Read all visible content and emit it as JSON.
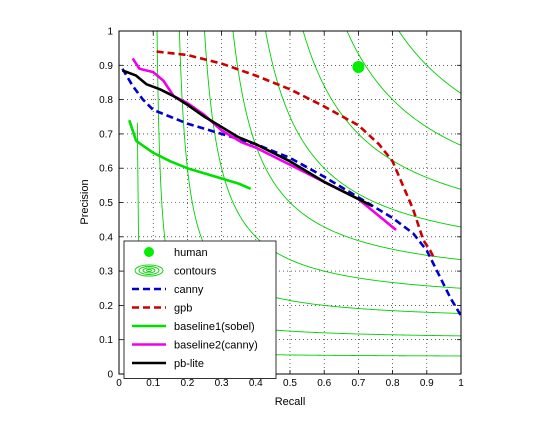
{
  "chart_data": {
    "type": "line",
    "xlabel": "Recall",
    "ylabel": "Precision",
    "xlim": [
      0,
      1
    ],
    "ylim": [
      0,
      1
    ],
    "grid": true,
    "legend_position": "bottom-left",
    "x_ticks": [
      "0",
      "0.1",
      "0.2",
      "0.3",
      "0.4",
      "0.5",
      "0.6",
      "0.7",
      "0.8",
      "0.9",
      "1"
    ],
    "y_ticks": [
      "0",
      "0.1",
      "0.2",
      "0.3",
      "0.4",
      "0.5",
      "0.6",
      "0.7",
      "0.8",
      "0.9",
      "1"
    ],
    "contours": {
      "color": "#00d000",
      "f_levels": [
        0.1,
        0.2,
        0.3,
        0.4,
        0.5,
        0.6,
        0.7,
        0.8,
        0.9
      ]
    },
    "series": [
      {
        "name": "human",
        "kind": "marker",
        "color": "#00ee00",
        "points": [
          [
            0.7,
            0.895
          ]
        ]
      },
      {
        "name": "contours",
        "kind": "contour-legend",
        "color": "#00d000",
        "points": []
      },
      {
        "name": "canny",
        "kind": "line",
        "style": "dashed",
        "color": "#0000cc",
        "points": [
          [
            0.01,
            0.89
          ],
          [
            0.04,
            0.84
          ],
          [
            0.07,
            0.8
          ],
          [
            0.1,
            0.77
          ],
          [
            0.15,
            0.75
          ],
          [
            0.2,
            0.73
          ],
          [
            0.3,
            0.7
          ],
          [
            0.4,
            0.67
          ],
          [
            0.5,
            0.63
          ],
          [
            0.6,
            0.575
          ],
          [
            0.7,
            0.515
          ],
          [
            0.8,
            0.455
          ],
          [
            0.86,
            0.41
          ],
          [
            0.9,
            0.36
          ],
          [
            0.94,
            0.28
          ],
          [
            0.97,
            0.22
          ],
          [
            1.0,
            0.17
          ]
        ]
      },
      {
        "name": "gpb",
        "kind": "line",
        "style": "dashed",
        "color": "#cc0000",
        "points": [
          [
            0.11,
            0.94
          ],
          [
            0.2,
            0.93
          ],
          [
            0.3,
            0.905
          ],
          [
            0.4,
            0.87
          ],
          [
            0.5,
            0.83
          ],
          [
            0.6,
            0.78
          ],
          [
            0.7,
            0.725
          ],
          [
            0.76,
            0.67
          ],
          [
            0.8,
            0.62
          ],
          [
            0.83,
            0.55
          ],
          [
            0.86,
            0.48
          ],
          [
            0.88,
            0.42
          ],
          [
            0.89,
            0.39
          ],
          [
            0.91,
            0.36
          ],
          [
            0.92,
            0.34
          ]
        ]
      },
      {
        "name": "baseline1(sobel)",
        "kind": "line",
        "style": "solid",
        "color": "#00e000",
        "points": [
          [
            0.03,
            0.74
          ],
          [
            0.05,
            0.68
          ],
          [
            0.1,
            0.645
          ],
          [
            0.15,
            0.62
          ],
          [
            0.2,
            0.6
          ],
          [
            0.25,
            0.585
          ],
          [
            0.3,
            0.57
          ],
          [
            0.35,
            0.555
          ],
          [
            0.385,
            0.54
          ]
        ]
      },
      {
        "name": "baseline2(canny)",
        "kind": "line",
        "style": "solid",
        "color": "#ee00ee",
        "points": [
          [
            0.04,
            0.92
          ],
          [
            0.06,
            0.89
          ],
          [
            0.1,
            0.88
          ],
          [
            0.13,
            0.855
          ],
          [
            0.16,
            0.81
          ],
          [
            0.2,
            0.79
          ],
          [
            0.25,
            0.755
          ],
          [
            0.3,
            0.71
          ],
          [
            0.36,
            0.675
          ],
          [
            0.4,
            0.66
          ],
          [
            0.5,
            0.61
          ],
          [
            0.6,
            0.56
          ],
          [
            0.7,
            0.51
          ],
          [
            0.81,
            0.42
          ]
        ]
      },
      {
        "name": "pb-lite",
        "kind": "line",
        "style": "solid",
        "color": "#000000",
        "points": [
          [
            0.01,
            0.885
          ],
          [
            0.05,
            0.87
          ],
          [
            0.08,
            0.845
          ],
          [
            0.12,
            0.83
          ],
          [
            0.16,
            0.81
          ],
          [
            0.2,
            0.785
          ],
          [
            0.25,
            0.75
          ],
          [
            0.3,
            0.72
          ],
          [
            0.35,
            0.69
          ],
          [
            0.4,
            0.67
          ],
          [
            0.45,
            0.645
          ],
          [
            0.5,
            0.62
          ],
          [
            0.55,
            0.59
          ],
          [
            0.6,
            0.56
          ],
          [
            0.65,
            0.535
          ],
          [
            0.7,
            0.51
          ],
          [
            0.74,
            0.49
          ]
        ]
      }
    ]
  }
}
